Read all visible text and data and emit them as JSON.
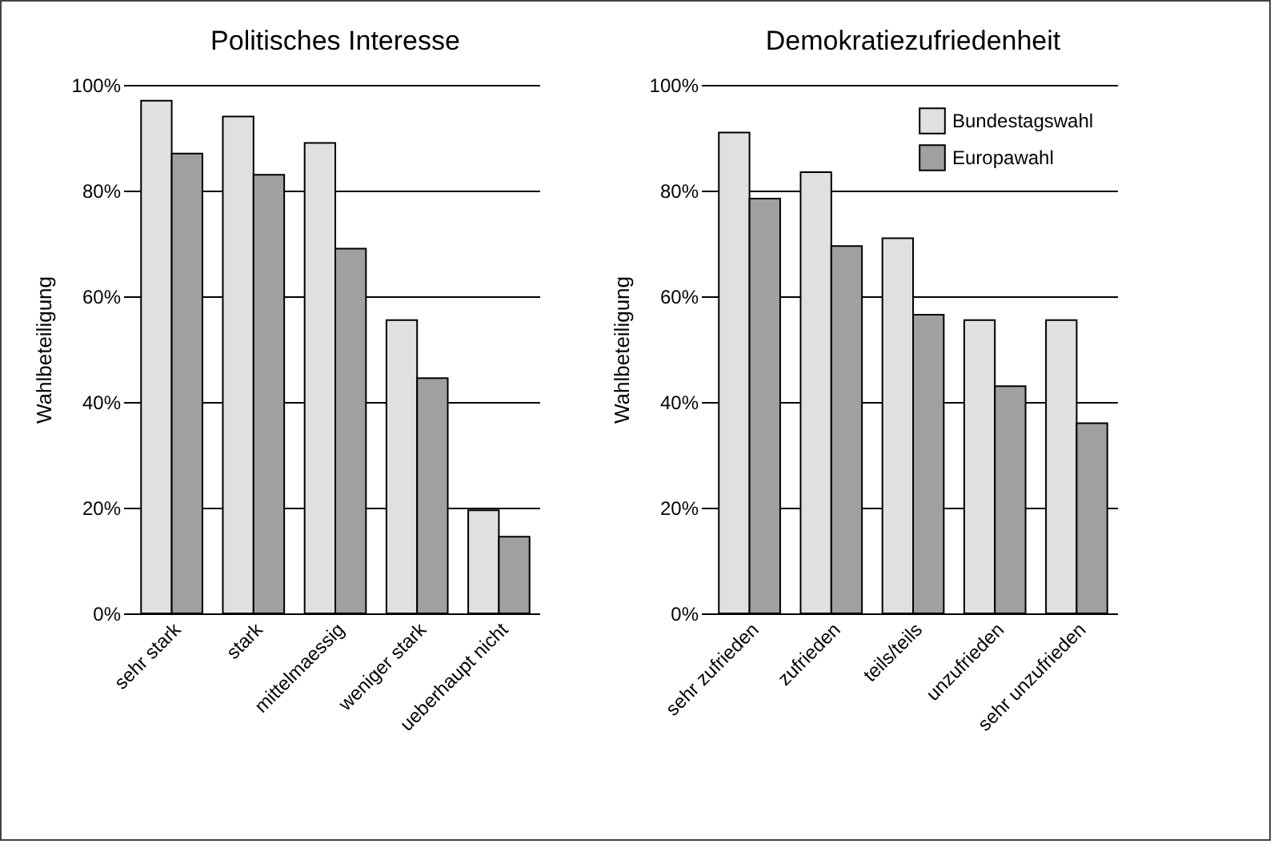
{
  "chart_data": [
    {
      "type": "bar",
      "title": "Politisches Interesse",
      "ylabel": "Wahlbeteiligung",
      "categories": [
        "sehr stark",
        "stark",
        "mittelmaessig",
        "weniger stark",
        "ueberhaupt nicht"
      ],
      "series": [
        {
          "color": "#e0e0e0",
          "values": [
            97,
            94,
            89,
            55.5,
            19.5
          ]
        },
        {
          "color": "#a0a0a0",
          "values": [
            87,
            83,
            69,
            44.5,
            14.5
          ]
        }
      ],
      "ylim": [
        0,
        100
      ],
      "yticks": [
        {
          "value": 0,
          "label": "0%"
        },
        {
          "value": 20,
          "label": "20%"
        },
        {
          "value": 40,
          "label": "40%"
        },
        {
          "value": 60,
          "label": "60%"
        },
        {
          "value": 80,
          "label": "80%"
        },
        {
          "value": 100,
          "label": "100%"
        }
      ],
      "grid": "y"
    },
    {
      "type": "bar",
      "title": "Demokratiezufriedenheit",
      "ylabel": "Wahlbeteiligung",
      "categories": [
        "sehr zufrieden",
        "zufrieden",
        "teils/teils",
        "unzufrieden",
        "sehr unzufrieden"
      ],
      "series": [
        {
          "name": "Bundestagswahl",
          "color": "#e0e0e0",
          "values": [
            91,
            83.5,
            71,
            55.5,
            55.5
          ]
        },
        {
          "name": "Europawahl",
          "color": "#a0a0a0",
          "values": [
            78.5,
            69.5,
            56.5,
            43,
            36
          ]
        }
      ],
      "ylim": [
        0,
        100
      ],
      "yticks": [
        {
          "value": 0,
          "label": "0%"
        },
        {
          "value": 20,
          "label": "20%"
        },
        {
          "value": 40,
          "label": "40%"
        },
        {
          "value": 60,
          "label": "60%"
        },
        {
          "value": 80,
          "label": "80%"
        },
        {
          "value": 100,
          "label": "100%"
        }
      ],
      "grid": "y",
      "legend": "top right"
    }
  ]
}
